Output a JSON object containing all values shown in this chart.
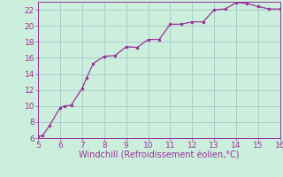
{
  "x": [
    5,
    5.2,
    5.5,
    6,
    6.2,
    6.5,
    7,
    7.2,
    7.5,
    8,
    8.5,
    9,
    9.5,
    10,
    10.5,
    11,
    11.5,
    12,
    12.5,
    13,
    13.5,
    14,
    14.5,
    15,
    15.5,
    16
  ],
  "y": [
    6.2,
    6.3,
    7.5,
    9.8,
    10.0,
    10.1,
    12.2,
    13.5,
    15.3,
    16.2,
    16.3,
    17.4,
    17.3,
    18.3,
    18.3,
    20.2,
    20.2,
    20.5,
    20.5,
    22.0,
    22.1,
    22.9,
    22.8,
    22.4,
    22.1,
    22.1
  ],
  "xlim": [
    5,
    16
  ],
  "ylim": [
    6,
    23
  ],
  "xticks": [
    5,
    6,
    7,
    8,
    9,
    10,
    11,
    12,
    13,
    14,
    15,
    16
  ],
  "yticks": [
    6,
    8,
    10,
    12,
    14,
    16,
    18,
    20,
    22
  ],
  "xlabel": "Windchill (Refroidissement éolien,°C)",
  "line_color": "#993399",
  "marker_color": "#993399",
  "bg_color": "#cceedd",
  "grid_color": "#aacccc",
  "tick_color": "#993399",
  "label_color": "#993399",
  "font_size": 6.5,
  "xlabel_fontsize": 7.0
}
